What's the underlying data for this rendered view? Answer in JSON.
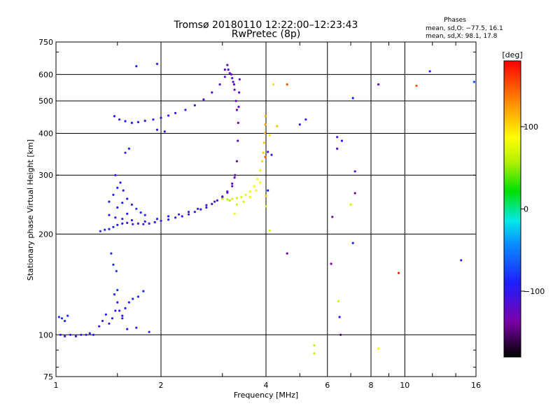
{
  "chart_data": {
    "type": "scatter",
    "title": "Tromsø 20180110 12:22:00–12:23:43",
    "subtitle": "RwPretec (8p)",
    "phases_header": "Phases",
    "phases_o": "mean, sd,O: −77.5, 16.1",
    "phases_x": "mean, sd,X:  98.1, 17.8",
    "xlabel": "Frequency [MHz]",
    "ylabel": "Stationary phase Virtual Height [km]",
    "xscale": "log2",
    "yscale": "log",
    "xlim": [
      1,
      16
    ],
    "ylim": [
      75,
      750
    ],
    "xticks": [
      1,
      2,
      4,
      6,
      8,
      10,
      16
    ],
    "xtick_labels": [
      "1",
      "2",
      "4",
      "6",
      "8",
      "10",
      "16"
    ],
    "yticks": [
      75,
      100,
      200,
      300,
      400,
      500,
      600,
      750
    ],
    "ytick_labels": [
      "75",
      "100",
      "200",
      "300",
      "400",
      "500",
      "600",
      "750"
    ],
    "grid": true,
    "colorbar": {
      "label": "[deg]",
      "range": [
        -180,
        180
      ],
      "ticks": [
        100,
        0,
        -100
      ],
      "tick_labels": [
        "100",
        "0",
        "−100"
      ]
    },
    "points": [
      [
        1.03,
        100,
        -95
      ],
      [
        1.06,
        99,
        -95
      ],
      [
        1.1,
        100,
        -95
      ],
      [
        1.14,
        99,
        -100
      ],
      [
        1.18,
        100,
        -95
      ],
      [
        1.22,
        100,
        -100
      ],
      [
        1.25,
        101,
        -95
      ],
      [
        1.28,
        100,
        -90
      ],
      [
        1.04,
        112,
        -85
      ],
      [
        1.06,
        110,
        -85
      ],
      [
        1.08,
        114,
        -85
      ],
      [
        1.02,
        113,
        -80
      ],
      [
        1.33,
        106,
        -100
      ],
      [
        1.36,
        110,
        -100
      ],
      [
        1.39,
        115,
        -95
      ],
      [
        1.42,
        108,
        -105
      ],
      [
        1.45,
        112,
        -100
      ],
      [
        1.48,
        118,
        -95
      ],
      [
        1.5,
        125,
        -95
      ],
      [
        1.52,
        118,
        -100
      ],
      [
        1.55,
        114,
        -100
      ],
      [
        1.58,
        120,
        -90
      ],
      [
        1.62,
        125,
        -90
      ],
      [
        1.66,
        128,
        -90
      ],
      [
        1.47,
        132,
        -85
      ],
      [
        1.5,
        136,
        -85
      ],
      [
        1.46,
        162,
        -85
      ],
      [
        1.49,
        155,
        -85
      ],
      [
        1.44,
        175,
        -85
      ],
      [
        1.78,
        135,
        -85
      ],
      [
        1.85,
        102,
        -100
      ],
      [
        1.6,
        104,
        -95
      ],
      [
        1.34,
        204,
        -85
      ],
      [
        1.38,
        206,
        -85
      ],
      [
        1.42,
        207,
        -90
      ],
      [
        1.46,
        210,
        -90
      ],
      [
        1.5,
        213,
        -90
      ],
      [
        1.55,
        215,
        -90
      ],
      [
        1.6,
        216,
        -100
      ],
      [
        1.66,
        214,
        -95
      ],
      [
        1.72,
        215,
        -100
      ],
      [
        1.78,
        214,
        -100
      ],
      [
        1.85,
        215,
        -100
      ],
      [
        1.92,
        217,
        -95
      ],
      [
        2.0,
        219,
        -95
      ],
      [
        2.1,
        221,
        -95
      ],
      [
        2.2,
        224,
        -95
      ],
      [
        2.3,
        226,
        -100
      ],
      [
        2.4,
        229,
        -105
      ],
      [
        2.5,
        233,
        -105
      ],
      [
        2.6,
        237,
        -110
      ],
      [
        2.7,
        240,
        -110
      ],
      [
        2.8,
        246,
        -110
      ],
      [
        2.9,
        252,
        -115
      ],
      [
        3.0,
        259,
        -115
      ],
      [
        3.1,
        268,
        -120
      ],
      [
        3.2,
        283,
        -125
      ],
      [
        3.26,
        300,
        -125
      ],
      [
        3.3,
        330,
        -130
      ],
      [
        3.32,
        380,
        -130
      ],
      [
        3.33,
        430,
        -130
      ],
      [
        3.34,
        480,
        -125
      ],
      [
        3.35,
        530,
        -125
      ],
      [
        3.36,
        580,
        -125
      ],
      [
        1.42,
        228,
        -95
      ],
      [
        1.48,
        224,
        -95
      ],
      [
        1.55,
        222,
        -95
      ],
      [
        1.65,
        220,
        -95
      ],
      [
        1.8,
        218,
        -95
      ],
      [
        1.95,
        222,
        -95
      ],
      [
        2.1,
        226,
        -95
      ],
      [
        2.25,
        229,
        -100
      ],
      [
        2.4,
        233,
        -100
      ],
      [
        2.55,
        238,
        -105
      ],
      [
        2.7,
        244,
        -105
      ],
      [
        2.85,
        250,
        -110
      ],
      [
        3.0,
        258,
        -110
      ],
      [
        3.1,
        266,
        -115
      ],
      [
        3.2,
        278,
        -115
      ],
      [
        3.25,
        295,
        -120
      ],
      [
        1.42,
        250,
        -90
      ],
      [
        1.46,
        262,
        -90
      ],
      [
        1.5,
        275,
        -90
      ],
      [
        1.53,
        285,
        -90
      ],
      [
        1.56,
        270,
        -90
      ],
      [
        1.6,
        255,
        -90
      ],
      [
        1.65,
        245,
        -90
      ],
      [
        1.7,
        238,
        -85
      ],
      [
        1.75,
        232,
        -85
      ],
      [
        1.8,
        228,
        -85
      ],
      [
        1.48,
        300,
        -100
      ],
      [
        1.5,
        240,
        -90
      ],
      [
        1.55,
        248,
        -90
      ],
      [
        1.6,
        230,
        -90
      ],
      [
        1.62,
        360,
        -85
      ],
      [
        1.58,
        350,
        -100
      ],
      [
        1.47,
        450,
        -90
      ],
      [
        1.52,
        440,
        -90
      ],
      [
        1.58,
        435,
        -90
      ],
      [
        1.65,
        430,
        -90
      ],
      [
        1.72,
        432,
        -90
      ],
      [
        1.8,
        436,
        -95
      ],
      [
        1.9,
        440,
        -95
      ],
      [
        2.0,
        445,
        -95
      ],
      [
        2.1,
        452,
        -100
      ],
      [
        2.2,
        460,
        -100
      ],
      [
        2.35,
        470,
        -105
      ],
      [
        2.5,
        485,
        -105
      ],
      [
        2.65,
        505,
        -110
      ],
      [
        2.8,
        530,
        -110
      ],
      [
        2.95,
        560,
        -115
      ],
      [
        3.05,
        590,
        -115
      ],
      [
        3.12,
        620,
        -120
      ],
      [
        3.18,
        600,
        -120
      ],
      [
        3.22,
        570,
        -120
      ],
      [
        3.25,
        540,
        -120
      ],
      [
        3.28,
        500,
        -125
      ],
      [
        3.3,
        470,
        -125
      ],
      [
        1.95,
        410,
        -100
      ],
      [
        2.05,
        405,
        -100
      ],
      [
        3.05,
        620,
        -120
      ],
      [
        3.1,
        640,
        -125
      ],
      [
        3.15,
        605,
        -125
      ],
      [
        3.2,
        585,
        -120
      ],
      [
        3.24,
        560,
        -120
      ],
      [
        3.0,
        255,
        60
      ],
      [
        3.1,
        254,
        60
      ],
      [
        3.2,
        255,
        70
      ],
      [
        3.3,
        256,
        70
      ],
      [
        3.4,
        258,
        75
      ],
      [
        3.5,
        262,
        75
      ],
      [
        3.6,
        268,
        80
      ],
      [
        3.7,
        278,
        85
      ],
      [
        3.78,
        292,
        90
      ],
      [
        3.85,
        310,
        95
      ],
      [
        3.9,
        330,
        100
      ],
      [
        3.93,
        350,
        105
      ],
      [
        3.95,
        375,
        110
      ],
      [
        3.97,
        400,
        115
      ],
      [
        3.98,
        425,
        120
      ],
      [
        3.99,
        450,
        120
      ],
      [
        3.3,
        245,
        65
      ],
      [
        3.45,
        250,
        70
      ],
      [
        3.6,
        258,
        75
      ],
      [
        3.75,
        270,
        80
      ],
      [
        3.85,
        285,
        85
      ],
      [
        4.0,
        260,
        110
      ],
      [
        3.25,
        230,
        80
      ],
      [
        3.15,
        252,
        60
      ],
      [
        3.98,
        340,
        150
      ],
      [
        4.05,
        352,
        -110
      ],
      [
        4.1,
        395,
        95
      ],
      [
        4.2,
        560,
        100
      ],
      [
        4.3,
        420,
        110
      ],
      [
        4.15,
        345,
        -100
      ],
      [
        4.05,
        270,
        -90
      ],
      [
        4.0,
        242,
        70
      ],
      [
        4.1,
        205,
        70
      ],
      [
        4.6,
        175,
        -140
      ],
      [
        5.2,
        440,
        -95
      ],
      [
        5.0,
        425,
        -90
      ],
      [
        4.6,
        560,
        150
      ],
      [
        5.5,
        93,
        60
      ],
      [
        5.5,
        88,
        60
      ],
      [
        6.15,
        163,
        -140
      ],
      [
        6.2,
        225,
        -140
      ],
      [
        6.4,
        390,
        -100
      ],
      [
        6.4,
        360,
        -110
      ],
      [
        6.45,
        126,
        70
      ],
      [
        6.5,
        113,
        -90
      ],
      [
        6.55,
        100,
        -150
      ],
      [
        6.6,
        380,
        -110
      ],
      [
        7.1,
        510,
        -90
      ],
      [
        7.2,
        265,
        -140
      ],
      [
        7.2,
        308,
        -110
      ],
      [
        7.0,
        245,
        70
      ],
      [
        7.1,
        188,
        -90
      ],
      [
        8.4,
        560,
        -120
      ],
      [
        8.4,
        91,
        80
      ],
      [
        9.6,
        153,
        170
      ],
      [
        10.8,
        555,
        150
      ],
      [
        11.8,
        613,
        -100
      ],
      [
        14.5,
        167,
        -90
      ],
      [
        15.8,
        570,
        -70
      ],
      [
        1.7,
        635,
        -90
      ],
      [
        1.95,
        645,
        -100
      ],
      [
        1.55,
        112,
        -90
      ],
      [
        1.72,
        130,
        -90
      ],
      [
        1.7,
        105,
        -100
      ]
    ]
  }
}
